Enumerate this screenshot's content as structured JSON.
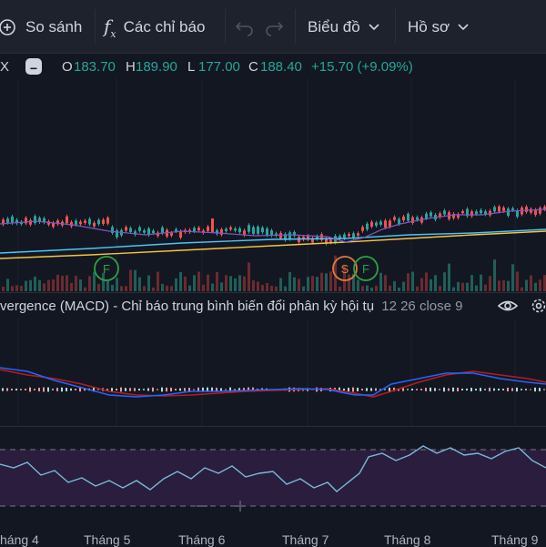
{
  "toolbar": {
    "compare_label": "So sánh",
    "indicators_label": "Các chỉ báo",
    "chart_label": "Biểu đồ",
    "profile_label": "Hồ sơ"
  },
  "ohlc": {
    "symbol_tail": "X",
    "o_label": "O",
    "o_value": "183.70",
    "h_label": "H",
    "h_value": "189.90",
    "l_label": "L",
    "l_value": "177.00",
    "c_label": "C",
    "c_value": "188.40",
    "change": "+15.70 (+9.09%)"
  },
  "markers": {
    "f1": "F",
    "s": "S",
    "f2": "F"
  },
  "macd": {
    "legend": "vergence (MACD) - Chỉ báo trung bình biến đổi phân kỳ hội tụ",
    "params": "12 26 close 9"
  },
  "xaxis": {
    "labels": [
      "háng 4",
      "Tháng 5",
      "Tháng 6",
      "Tháng 7",
      "Tháng 8",
      "Tháng 9"
    ]
  },
  "colors": {
    "bg": "#131722",
    "up": "#26a69a",
    "down": "#ef5350",
    "macd_line": "#2962ff",
    "signal_line": "#b71c1c",
    "rsi_line": "#7bb8d9",
    "rsi_band": "#2a1d3d",
    "ma_long": "#f5c344",
    "ma_mid": "#4fc3f7"
  },
  "icons": [
    "plus-circle-icon",
    "function-icon",
    "undo-icon",
    "redo-icon",
    "chevron-down-icon",
    "eye-icon",
    "gear-icon",
    "minus-icon"
  ]
}
